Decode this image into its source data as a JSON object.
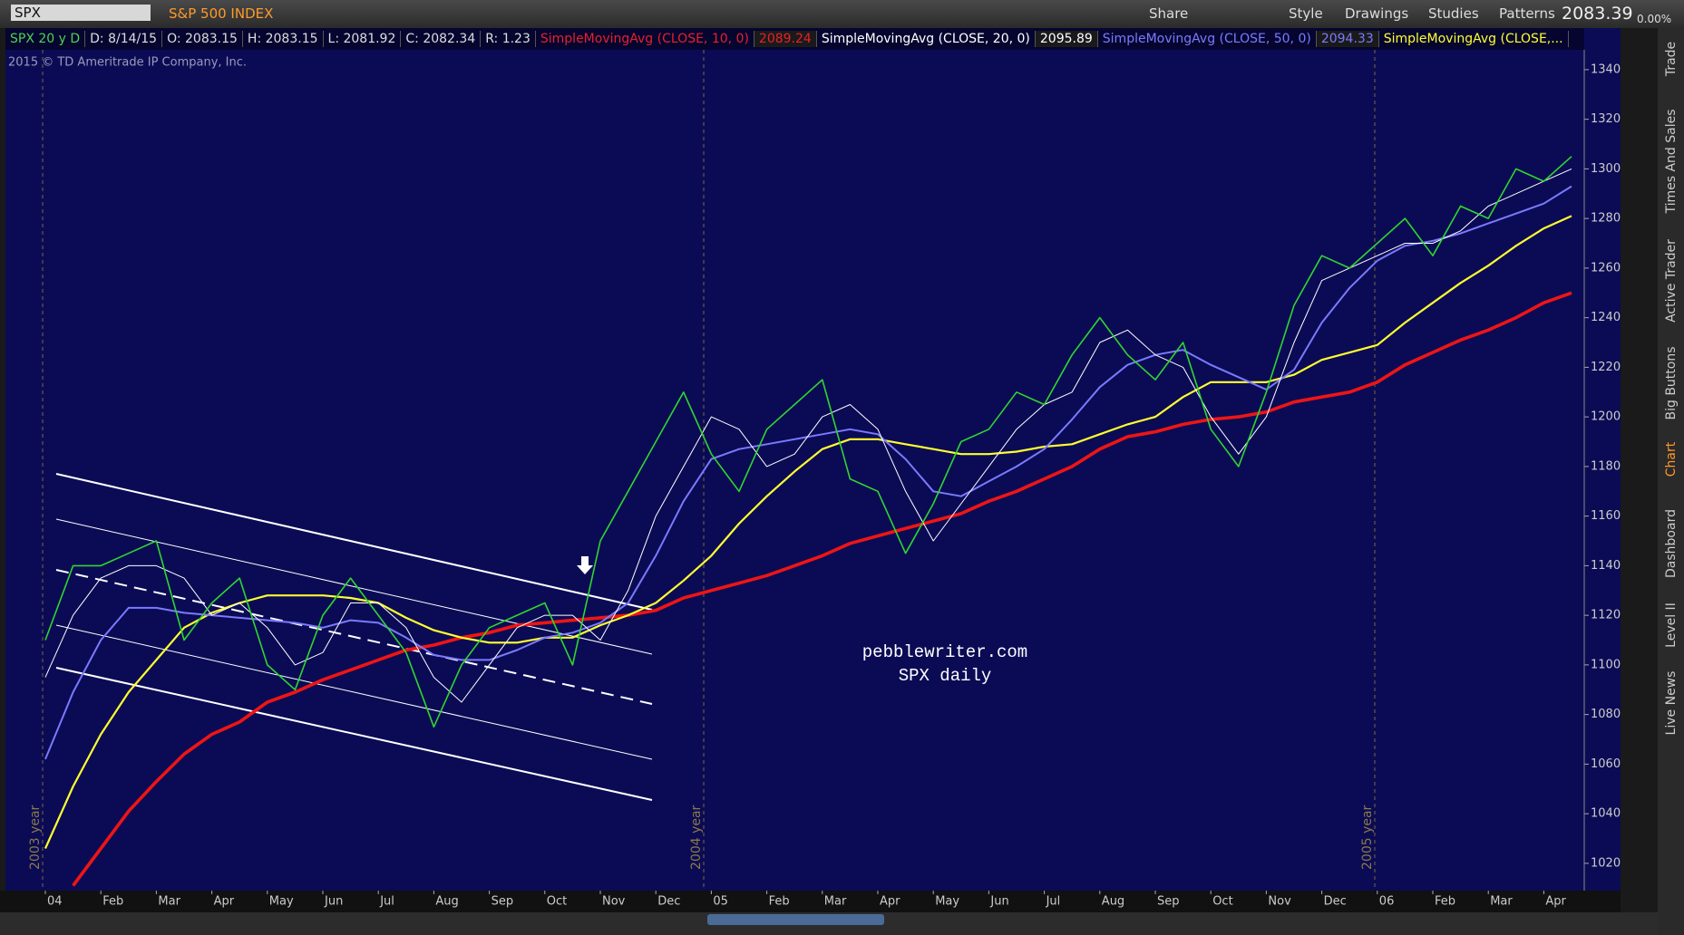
{
  "toolbar": {
    "symbol": "SPX",
    "description": "S&P 500 INDEX",
    "buttons": [
      "Share",
      "Style",
      "Drawings",
      "Studies",
      "Patterns"
    ],
    "last": "2083.39",
    "change": "0.00%"
  },
  "study_bar": {
    "title": "SPX 20 y D",
    "fields": [
      "D: 8/14/15",
      "O: 2083.15",
      "H: 2083.15",
      "L: 2081.92",
      "C: 2082.34",
      "R: 1.23"
    ],
    "extra": {
      "name": "SimpleMovingAvg (CLOSE, 10, 0)",
      "value": "2089.24",
      "color": "#e8202a"
    }
  },
  "copyright": "2015 © TD Ameritrade IP Company, Inc.",
  "side_tabs": [
    "Trade",
    "Times And Sales",
    "Active Trader",
    "Big Buttons",
    "Chart",
    "Dashboard",
    "Level II",
    "Live News"
  ],
  "chart_data": {
    "type": "line",
    "annotations": [
      "pebblewriter.com",
      "SPX daily"
    ],
    "year_labels": [
      "2003 year",
      "2004 year",
      "2005 year"
    ],
    "categories": [
      "04",
      null,
      "Feb",
      null,
      "Mar",
      null,
      "Apr",
      null,
      "May",
      null,
      "Jun",
      null,
      "Jul",
      null,
      "Aug",
      null,
      "Sep",
      null,
      "Oct",
      null,
      "Nov",
      null,
      "Dec",
      null,
      "05",
      null,
      "Feb",
      null,
      "Mar",
      null,
      "Apr",
      null,
      "May",
      null,
      "Jun",
      null,
      "Jul",
      null,
      "Aug",
      null,
      "Sep",
      null,
      "Oct",
      null,
      "Nov",
      null,
      "Dec",
      null,
      "06",
      null,
      "Feb",
      null,
      "Mar",
      null,
      "Apr",
      null
    ],
    "series": [
      {
        "color": "#2fd62f",
        "width": 1.6,
        "values": [
          1110,
          1140,
          1140,
          1145,
          1150,
          1110,
          1125,
          1135,
          1100,
          1090,
          1120,
          1135,
          1120,
          1105,
          1075,
          1100,
          1115,
          1120,
          1125,
          1100,
          1150,
          1170,
          1190,
          1210,
          1185,
          1170,
          1195,
          1205,
          1215,
          1175,
          1170,
          1145,
          1165,
          1190,
          1195,
          1210,
          1205,
          1225,
          1240,
          1225,
          1215,
          1230,
          1195,
          1180,
          1210,
          1245,
          1265,
          1260,
          1270,
          1280,
          1265,
          1285,
          1280,
          1300,
          1295,
          1305
        ]
      },
      {
        "name": "SimpleMovingAvg (CLOSE, 20, 0)",
        "legend_value": "2095.89",
        "color": "#ffffff",
        "width": 1,
        "values": [
          1095,
          1120,
          1135,
          1140,
          1140,
          1135,
          1120,
          1125,
          1115,
          1100,
          1105,
          1125,
          1125,
          1115,
          1095,
          1085,
          1100,
          1115,
          1120,
          1120,
          1110,
          1130,
          1160,
          1180,
          1200,
          1195,
          1180,
          1185,
          1200,
          1205,
          1195,
          1170,
          1150,
          1165,
          1180,
          1195,
          1205,
          1210,
          1230,
          1235,
          1225,
          1220,
          1200,
          1185,
          1200,
          1230,
          1255,
          1260,
          1265,
          1270,
          1270,
          1275,
          1285,
          1290,
          1295,
          1300
        ]
      },
      {
        "name": "SimpleMovingAvg (CLOSE, 50, 0)",
        "legend_value": "2094.33",
        "color": "#7a7aff",
        "width": 2,
        "values": [
          1062,
          1089,
          1110,
          1123,
          1123,
          1121,
          1120,
          1119,
          1118,
          1117,
          1115,
          1118,
          1117,
          1111,
          1104,
          1102,
          1102,
          1106,
          1111,
          1113,
          1117,
          1125,
          1144,
          1166,
          1183,
          1187,
          1189,
          1191,
          1193,
          1195,
          1193,
          1183,
          1170,
          1168,
          1174,
          1180,
          1187,
          1199,
          1212,
          1221,
          1225,
          1227,
          1221,
          1216,
          1211,
          1219,
          1238,
          1252,
          1263,
          1269,
          1271,
          1274,
          1278,
          1282,
          1286,
          1293
        ]
      },
      {
        "name": "SimpleMovingAvg (CLOSE,...",
        "color": "#ffff30",
        "width": 2.2,
        "values": [
          1026,
          1051,
          1072,
          1089,
          1102,
          1115,
          1121,
          1125,
          1128,
          1128,
          1128,
          1127,
          1125,
          1119,
          1114,
          1111,
          1109,
          1109,
          1111,
          1111,
          1116,
          1120,
          1125,
          1134,
          1144,
          1157,
          1168,
          1178,
          1187,
          1191,
          1191,
          1189,
          1187,
          1185,
          1185,
          1186,
          1188,
          1189,
          1193,
          1197,
          1200,
          1208,
          1214,
          1214,
          1214,
          1217,
          1223,
          1226,
          1229,
          1238,
          1246,
          1254,
          1261,
          1269,
          1276,
          1281
        ]
      },
      {
        "color": "#ee1515",
        "width": 3.6,
        "values": [
          null,
          1011,
          1026,
          1041,
          1053,
          1064,
          1072,
          1077,
          1085,
          1089,
          1094,
          1098,
          1102,
          1106,
          1108,
          1111,
          1113,
          1116,
          1117,
          1118,
          1119,
          1120,
          1122,
          1127,
          1130,
          1133,
          1136,
          1140,
          1144,
          1149,
          1152,
          1155,
          1158,
          1161,
          1166,
          1170,
          1175,
          1180,
          1187,
          1192,
          1194,
          1197,
          1199,
          1200,
          1202,
          1206,
          1208,
          1210,
          1214,
          1221,
          1226,
          1231,
          1235,
          1240,
          1246,
          1250
        ]
      }
    ],
    "ylim": [
      1009,
      1348
    ],
    "yticks": [
      1020,
      1040,
      1060,
      1080,
      1100,
      1120,
      1140,
      1160,
      1180,
      1200,
      1220,
      1240,
      1260,
      1280,
      1300,
      1320,
      1340
    ],
    "grid": false
  }
}
